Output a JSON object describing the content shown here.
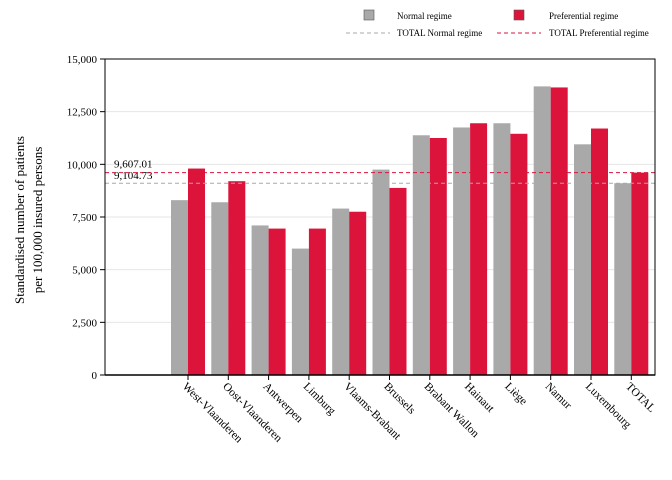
{
  "chart_data": {
    "type": "bar",
    "ylabel_line1": "Standardised number of patients",
    "ylabel_line2": "per 100,000 insured persons",
    "ylim": [
      0,
      15000
    ],
    "yticks": [
      0,
      2500,
      5000,
      7500,
      10000,
      12500,
      15000
    ],
    "ytick_labels": [
      "0",
      "2,500",
      "5,000",
      "7,500",
      "10,000",
      "12,500",
      "15,000"
    ],
    "grid": true,
    "legend_position": "top-right",
    "categories": [
      "West-Vlaanderen",
      "Oost-Vlaanderen",
      "Antwerpen",
      "Limburg",
      "Vlaams-Brabant",
      "Brussels",
      "Brabant Wallon",
      "Hainaut",
      "Liège",
      "Namur",
      "Luxembourg",
      "TOTAL"
    ],
    "series": [
      {
        "name": "Normal regime",
        "color": "#a9a9a9",
        "values": [
          8300,
          8200,
          7100,
          6000,
          7900,
          9750,
          11380,
          11750,
          11950,
          13700,
          10950,
          9104.73
        ]
      },
      {
        "name": "Preferential regime",
        "color": "#dc143c",
        "values": [
          9800,
          9200,
          6950,
          6950,
          7750,
          8880,
          11250,
          11950,
          11450,
          13650,
          11700,
          9607.01
        ]
      }
    ],
    "reference_lines": [
      {
        "name": "TOTAL Normal regime",
        "value": 9104.73,
        "label": "9,104.73",
        "color": "#a9a9a9"
      },
      {
        "name": "TOTAL Preferential regime",
        "value": 9607.01,
        "label": "9,607.01",
        "color": "#dc143c"
      }
    ]
  }
}
